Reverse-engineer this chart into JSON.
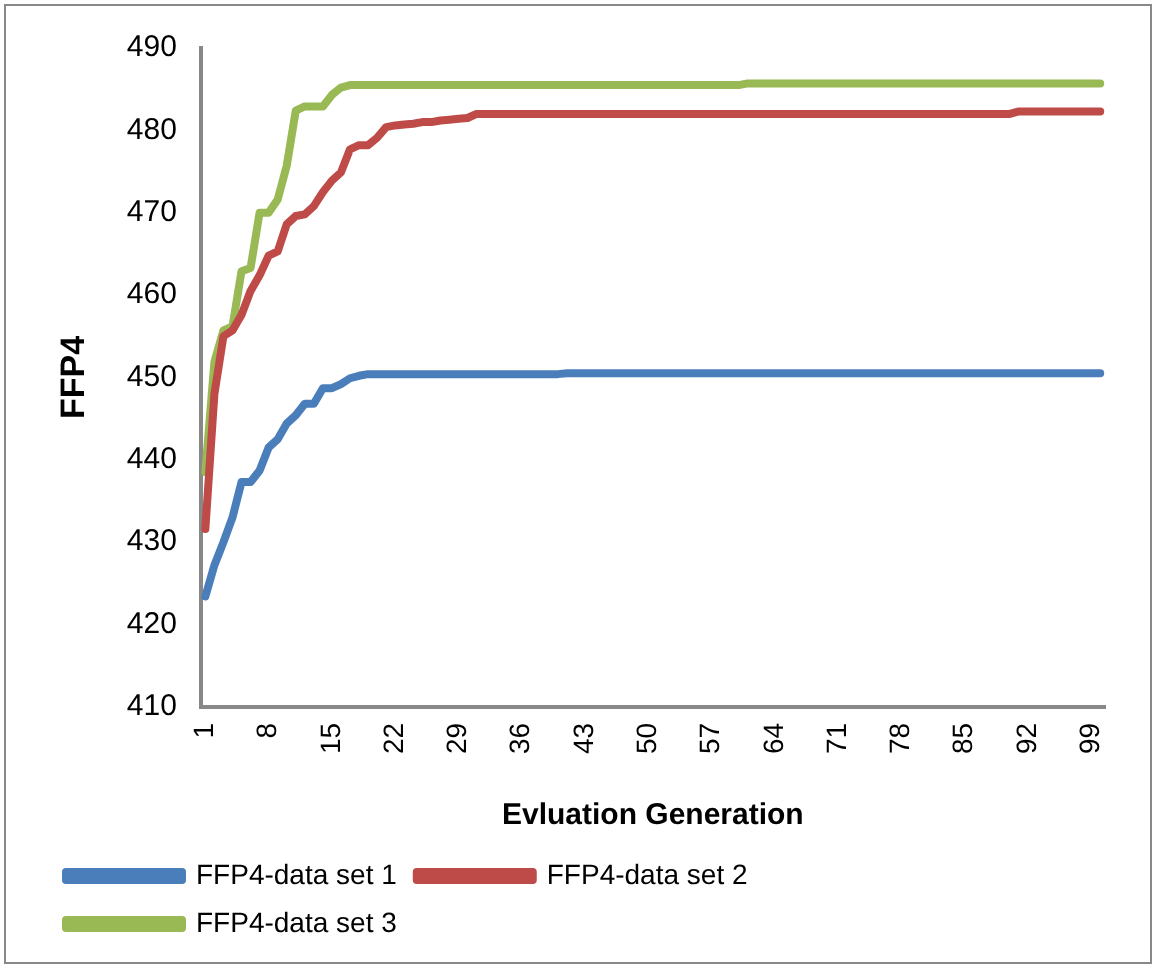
{
  "chart_data": {
    "type": "line",
    "xlabel": "Evluation Generation",
    "ylabel": "FFP4",
    "categories": [
      "1",
      null,
      null,
      null,
      null,
      null,
      null,
      "8",
      null,
      null,
      null,
      null,
      null,
      null,
      "15",
      null,
      null,
      null,
      null,
      null,
      null,
      "22",
      null,
      null,
      null,
      null,
      null,
      null,
      "29",
      null,
      null,
      null,
      null,
      null,
      null,
      "36",
      null,
      null,
      null,
      null,
      null,
      null,
      "43",
      null,
      null,
      null,
      null,
      null,
      null,
      "50",
      null,
      null,
      null,
      null,
      null,
      null,
      "57",
      null,
      null,
      null,
      null,
      null,
      null,
      "64",
      null,
      null,
      null,
      null,
      null,
      null,
      "71",
      null,
      null,
      null,
      null,
      null,
      null,
      "78",
      null,
      null,
      null,
      null,
      null,
      null,
      "85",
      null,
      null,
      null,
      null,
      null,
      null,
      "92",
      null,
      null,
      null,
      null,
      null,
      null,
      "99",
      null
    ],
    "series": [
      {
        "name": "FFP4-data set 1",
        "color": "#4a7ebb",
        "values": [
          423.4,
          427.2,
          430,
          433,
          437.3,
          437.3,
          438.7,
          441.5,
          442.5,
          444.4,
          445.4,
          446.8,
          446.8,
          448.7,
          448.7,
          449.2,
          449.9,
          450.2,
          450.4,
          450.4,
          450.4,
          450.4,
          450.4,
          450.4,
          450.4,
          450.4,
          450.4,
          450.4,
          450.4,
          450.4,
          450.4,
          450.4,
          450.4,
          450.4,
          450.4,
          450.4,
          450.4,
          450.4,
          450.4,
          450.4,
          450.5,
          450.5,
          450.5,
          450.5,
          450.5,
          450.5,
          450.5,
          450.5,
          450.5,
          450.5,
          450.5,
          450.5,
          450.5,
          450.5,
          450.5,
          450.5,
          450.5,
          450.5,
          450.5,
          450.5,
          450.5,
          450.5,
          450.5,
          450.5,
          450.5,
          450.5,
          450.5,
          450.5,
          450.5,
          450.5,
          450.5,
          450.5,
          450.5,
          450.5,
          450.5,
          450.5,
          450.5,
          450.5,
          450.5,
          450.5,
          450.5,
          450.5,
          450.5,
          450.5,
          450.5,
          450.5,
          450.5,
          450.5,
          450.5,
          450.5,
          450.5,
          450.5,
          450.5,
          450.5,
          450.5,
          450.5,
          450.5,
          450.5,
          450.5,
          450.5
        ]
      },
      {
        "name": "FFP4-data set 2",
        "color": "#be4b48",
        "values": [
          431.6,
          448,
          455,
          455.7,
          457.6,
          460.5,
          462.4,
          464.8,
          465.3,
          468.6,
          469.6,
          469.8,
          470.8,
          472.5,
          473.9,
          474.9,
          477.7,
          478.2,
          478.2,
          479.1,
          480.4,
          480.6,
          480.7,
          480.8,
          481,
          481,
          481.2,
          481.3,
          481.4,
          481.5,
          482,
          482,
          482,
          482,
          482,
          482,
          482,
          482,
          482,
          482,
          482,
          482,
          482,
          482,
          482,
          482,
          482,
          482,
          482,
          482,
          482,
          482,
          482,
          482,
          482,
          482,
          482,
          482,
          482,
          482,
          482,
          482,
          482,
          482,
          482,
          482,
          482,
          482,
          482,
          482,
          482,
          482,
          482,
          482,
          482,
          482,
          482,
          482,
          482,
          482,
          482,
          482,
          482,
          482,
          482,
          482,
          482,
          482,
          482,
          482,
          482.3,
          482.3,
          482.3,
          482.3,
          482.3,
          482.3,
          482.3,
          482.3,
          482.3,
          482.3
        ]
      },
      {
        "name": "FFP4-data set 3",
        "color": "#98b954",
        "values": [
          438.5,
          451.9,
          455.7,
          456.2,
          462.9,
          463.3,
          470,
          470,
          471.6,
          475.7,
          482.4,
          482.9,
          482.9,
          482.9,
          484.3,
          485.2,
          485.5,
          485.5,
          485.5,
          485.5,
          485.5,
          485.5,
          485.5,
          485.5,
          485.5,
          485.5,
          485.5,
          485.5,
          485.5,
          485.5,
          485.5,
          485.5,
          485.5,
          485.5,
          485.5,
          485.5,
          485.5,
          485.5,
          485.5,
          485.5,
          485.5,
          485.5,
          485.5,
          485.5,
          485.5,
          485.5,
          485.5,
          485.5,
          485.5,
          485.5,
          485.5,
          485.5,
          485.5,
          485.5,
          485.5,
          485.5,
          485.5,
          485.5,
          485.5,
          485.5,
          485.7,
          485.7,
          485.7,
          485.7,
          485.7,
          485.7,
          485.7,
          485.7,
          485.7,
          485.7,
          485.7,
          485.7,
          485.7,
          485.7,
          485.7,
          485.7,
          485.7,
          485.7,
          485.7,
          485.7,
          485.7,
          485.7,
          485.7,
          485.7,
          485.7,
          485.7,
          485.7,
          485.7,
          485.7,
          485.7,
          485.7,
          485.7,
          485.7,
          485.7,
          485.7,
          485.7,
          485.7,
          485.7,
          485.7,
          485.7
        ]
      }
    ],
    "ylim": [
      410,
      490
    ],
    "yticks": [
      410,
      420,
      430,
      440,
      450,
      460,
      470,
      480,
      490
    ],
    "grid": false,
    "legend": "bottom",
    "marker": "none",
    "line_style": "solid"
  }
}
